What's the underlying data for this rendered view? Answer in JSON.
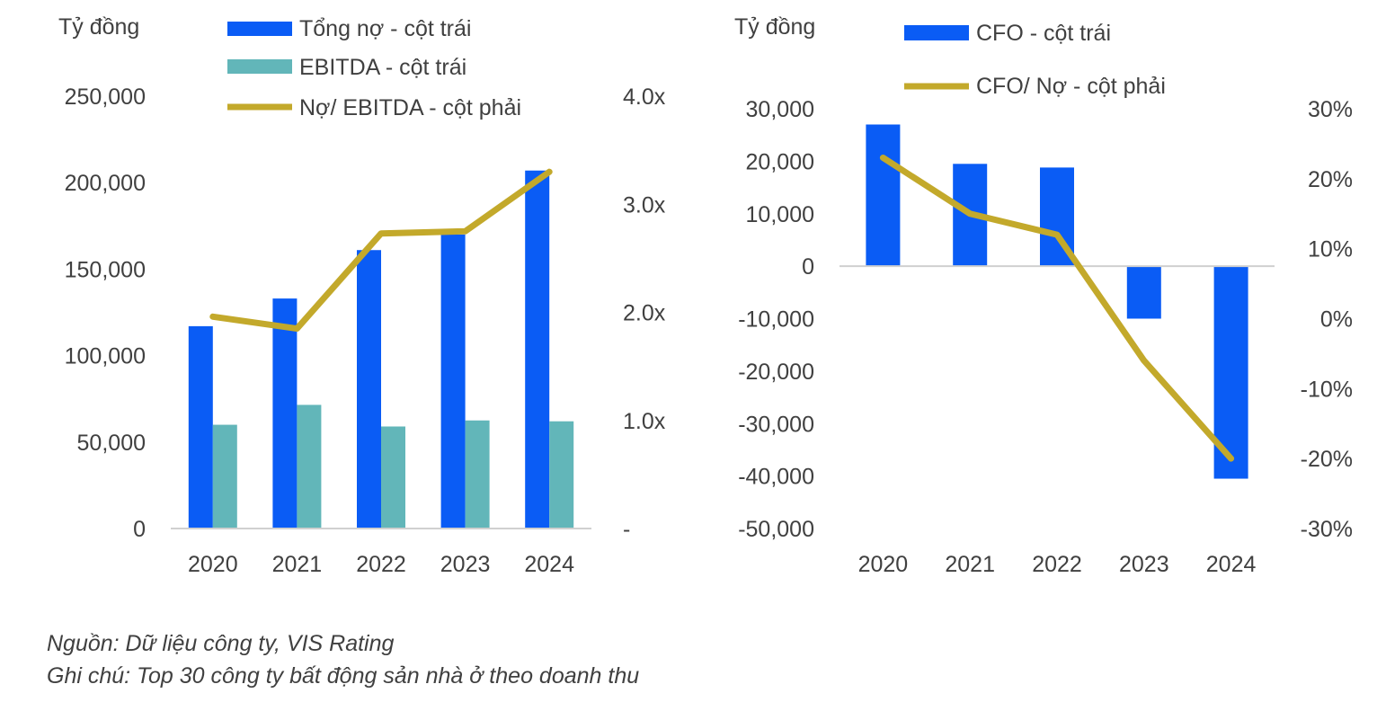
{
  "chart_data": [
    {
      "type": "bar",
      "unit_label": "Tỷ đồng",
      "categories": [
        "2020",
        "2021",
        "2022",
        "2023",
        "2024"
      ],
      "y_left_ticks": [
        "0",
        "50,000",
        "100,000",
        "150,000",
        "200,000",
        "250,000"
      ],
      "ylim_left": [
        0,
        250000
      ],
      "y_right_ticks": [
        "-",
        "1.0x",
        "2.0x",
        "3.0x",
        "4.0x"
      ],
      "ylim_right": [
        0,
        4.0
      ],
      "series": [
        {
          "name": "Tổng nợ - cột trái",
          "type": "bar",
          "axis": "left",
          "color": "#0A5CF5",
          "values": [
            117000,
            133000,
            161000,
            170000,
            207000
          ]
        },
        {
          "name": "EBITDA - cột trái",
          "type": "bar",
          "axis": "left",
          "color": "#62B6B9",
          "values": [
            60000,
            71500,
            59000,
            62500,
            62000
          ]
        },
        {
          "name": "Nợ/ EBITDA - cột phải",
          "type": "line",
          "axis": "right",
          "color": "#C3A92B",
          "values": [
            1.96,
            1.85,
            2.73,
            2.75,
            3.3
          ]
        }
      ],
      "legend_position": "top",
      "grid": false
    },
    {
      "type": "bar",
      "unit_label": "Tỷ đồng",
      "categories": [
        "2020",
        "2021",
        "2022",
        "2023",
        "2024"
      ],
      "y_left_ticks": [
        "-50,000",
        "-40,000",
        "-30,000",
        "-20,000",
        "-10,000",
        "0",
        "10,000",
        "20,000",
        "30,000"
      ],
      "ylim_left": [
        -50000,
        30000
      ],
      "y_right_ticks": [
        "-30%",
        "-20%",
        "-10%",
        "0%",
        "10%",
        "20%",
        "30%"
      ],
      "ylim_right": [
        -30,
        30
      ],
      "series": [
        {
          "name": "CFO - cột trái",
          "type": "bar",
          "axis": "left",
          "color": "#0A5CF5",
          "values": [
            27000,
            19500,
            18800,
            -10000,
            -40500
          ]
        },
        {
          "name": "CFO/ Nợ - cột phải",
          "type": "line",
          "axis": "right",
          "color": "#C3A92B",
          "values": [
            23,
            15,
            12,
            -6,
            -20
          ]
        }
      ],
      "legend_position": "top",
      "grid": false
    }
  ],
  "footnotes": {
    "source": "Nguồn: Dữ liệu công ty, VIS Rating",
    "note": "Ghi chú: Top 30 công ty bất động sản nhà ở theo doanh thu"
  }
}
